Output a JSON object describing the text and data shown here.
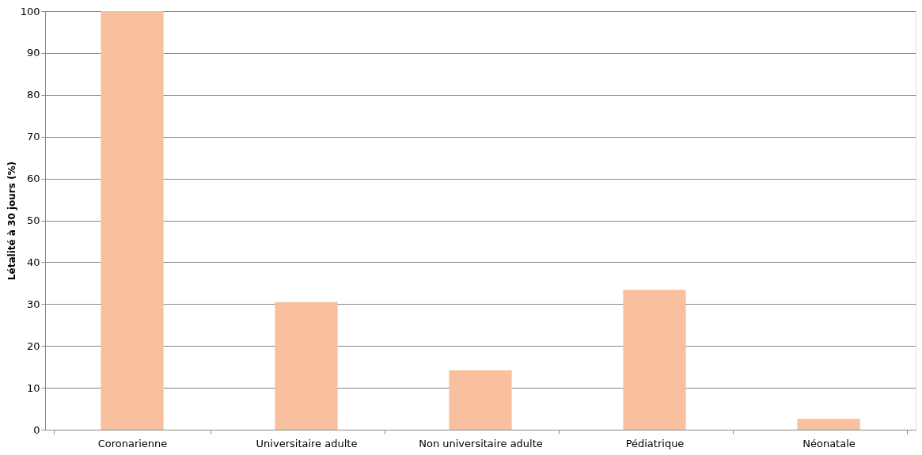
{
  "chart_data": {
    "type": "bar",
    "ylabel": "Létalité à 30 jours (%)",
    "categories": [
      "Coronarienne",
      "Universitaire adulte",
      "Non universitaire adulte",
      "Pédiatrique",
      "Néonatale"
    ],
    "values": [
      100,
      30.5,
      14.2,
      33.4,
      2.6
    ],
    "color": "#f9c0a0",
    "ylim": [
      0,
      100
    ],
    "yticks": [
      0,
      10,
      20,
      30,
      40,
      50,
      60,
      70,
      80,
      90,
      100
    ],
    "grid": "y"
  }
}
